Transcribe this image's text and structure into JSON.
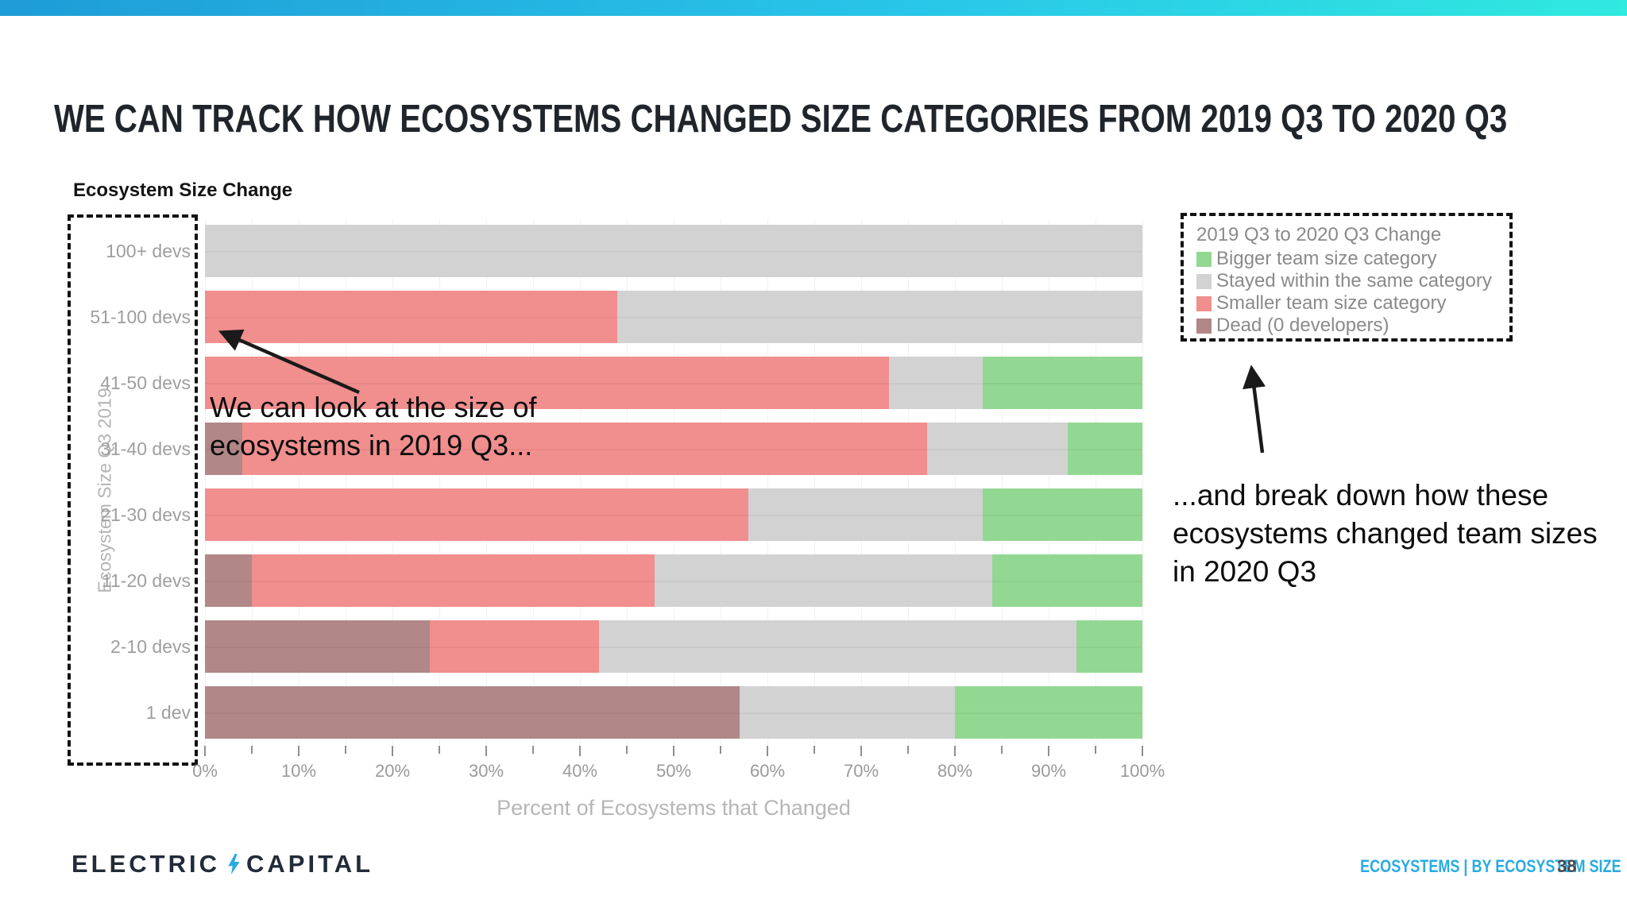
{
  "slide": {
    "title": "WE CAN TRACK HOW ECOSYSTEMS CHANGED SIZE CATEGORIES FROM 2019 Q3 TO 2020 Q3",
    "page_number": "38",
    "footer_right": "ECOSYSTEMS | BY ECOSYSTEM SIZE",
    "brand": {
      "word1": "ELECTRIC",
      "word2": "CAPITAL",
      "bolt_icon": "lightning-bolt",
      "bolt_color": "#29abe2"
    }
  },
  "annotations": {
    "left": {
      "line1": "We can look at the size of",
      "line2": "ecosystems in 2019 Q3..."
    },
    "right": {
      "line1": "...and break down how these",
      "line2": "ecosystems changed team sizes",
      "line3": "in 2020 Q3"
    }
  },
  "chart_data": {
    "type": "bar",
    "orientation": "horizontal",
    "stacked": true,
    "title": "Ecosystem Size Change",
    "xlabel": "Percent of Ecosystems that Changed",
    "ylabel": "Ecosystem Size Q3 2019",
    "xlim": [
      0,
      100
    ],
    "grid": "vertical, every 5%",
    "categories": [
      "100+ devs",
      "51-100 devs",
      "41-50 devs",
      "31-40 devs",
      "21-30 devs",
      "11-20 devs",
      "2-10 devs",
      "1 dev"
    ],
    "x_ticks": [
      "0%",
      "10%",
      "20%",
      "30%",
      "40%",
      "50%",
      "60%",
      "70%",
      "80%",
      "90%",
      "100%"
    ],
    "legend": {
      "title": "2019 Q3 to 2020 Q3 Change",
      "position": "outside-top-right, dashed box",
      "items": [
        {
          "label": "Bigger team size category",
          "color": "#92d892"
        },
        {
          "label": "Stayed within the same category",
          "color": "#d2d2d2"
        },
        {
          "label": "Smaller team size category",
          "color": "#f18e8e"
        },
        {
          "label": "Dead (0 developers)",
          "color": "#b18787"
        }
      ]
    },
    "series": [
      {
        "name": "Dead (0 developers)",
        "color": "#b18787",
        "values": [
          0,
          0,
          0,
          4,
          0,
          5,
          24,
          57
        ]
      },
      {
        "name": "Smaller team size category",
        "color": "#f18e8e",
        "values": [
          0,
          44,
          73,
          73,
          58,
          43,
          18,
          0
        ]
      },
      {
        "name": "Stayed within the same category",
        "color": "#d2d2d2",
        "values": [
          100,
          56,
          10,
          15,
          25,
          36,
          51,
          23
        ]
      },
      {
        "name": "Bigger team size category",
        "color": "#92d892",
        "values": [
          0,
          0,
          17,
          8,
          17,
          16,
          7,
          20
        ]
      }
    ],
    "units": "percent of ecosystems"
  }
}
